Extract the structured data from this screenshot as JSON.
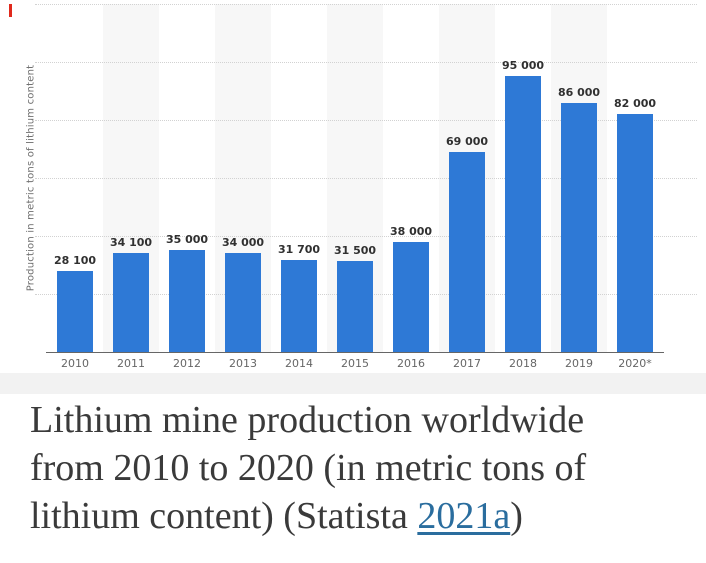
{
  "marker": {
    "color": "#e0291c"
  },
  "chart_data": {
    "type": "bar",
    "title": "",
    "categories": [
      "2010",
      "2011",
      "2012",
      "2013",
      "2014",
      "2015",
      "2016",
      "2017",
      "2018",
      "2019",
      "2020*"
    ],
    "values": [
      28100,
      34100,
      35000,
      34000,
      31700,
      31500,
      38000,
      69000,
      95000,
      86000,
      82000
    ],
    "value_labels": [
      "28 100",
      "34 100",
      "35 000",
      "34 000",
      "31 700",
      "31 500",
      "38 000",
      "69 000",
      "95 000",
      "86 000",
      "82 000"
    ],
    "xlabel": "",
    "ylabel": "Production in metric tons of lithium content",
    "ylim": [
      0,
      120000
    ],
    "grid_step": 20000,
    "grid": "horizontal dotted lines, no y tick labels",
    "legend": "none",
    "bar_color": "#2e79d6",
    "band_color": "#f7f7f7"
  },
  "caption": {
    "line1": "Lithium mine production worldwide",
    "line2": "from 2010 to 2020 (in metric tons of",
    "line3_prefix": "lithium content) (Statista ",
    "link_text": "2021a",
    "line3_suffix": ")",
    "link_color": "#2a6d9e"
  }
}
